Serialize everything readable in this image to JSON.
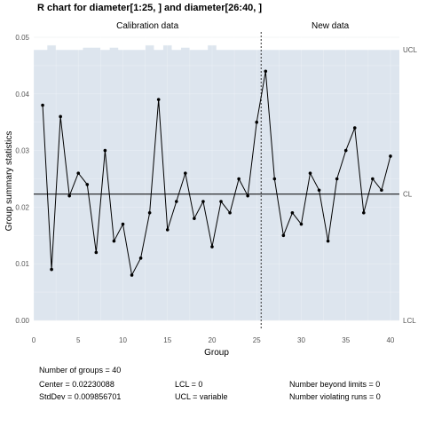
{
  "chart_data": {
    "type": "line",
    "title": "R chart for diameter[1:25, ] and diameter[26:40, ]",
    "xlabel": "Group",
    "ylabel": "Group summary statistics",
    "xlim": [
      0,
      41
    ],
    "ylim": [
      0,
      0.05
    ],
    "xticks": [
      0,
      5,
      10,
      15,
      20,
      25,
      30,
      35,
      40
    ],
    "yticks": [
      0.0,
      0.01,
      0.02,
      0.03,
      0.04,
      0.05
    ],
    "ytick_labels": [
      "0.00",
      "0.01",
      "0.02",
      "0.03",
      "0.04",
      "0.05"
    ],
    "grid": true,
    "sections": [
      "Calibration data",
      "New data"
    ],
    "split_at": 25.5,
    "center": 0.0223,
    "limit_labels": {
      "ucl": "UCL",
      "cl": "CL",
      "lcl": "LCL"
    },
    "x": [
      1,
      2,
      3,
      4,
      5,
      6,
      7,
      8,
      9,
      10,
      11,
      12,
      13,
      14,
      15,
      16,
      17,
      18,
      19,
      20,
      21,
      22,
      23,
      24,
      25,
      26,
      27,
      28,
      29,
      30,
      31,
      32,
      33,
      34,
      35,
      36,
      37,
      38,
      39,
      40
    ],
    "values": [
      0.038,
      0.009,
      0.036,
      0.022,
      0.026,
      0.024,
      0.012,
      0.03,
      0.014,
      0.017,
      0.008,
      0.011,
      0.019,
      0.039,
      0.016,
      0.021,
      0.026,
      0.018,
      0.021,
      0.013,
      0.021,
      0.019,
      0.025,
      0.022,
      0.035,
      0.044,
      0.025,
      0.015,
      0.019,
      0.017,
      0.026,
      0.023,
      0.014,
      0.025,
      0.03,
      0.034,
      0.019,
      0.025,
      0.023,
      0.029
    ],
    "ucl": [
      0.0478,
      0.0486,
      0.0478,
      0.0478,
      0.0478,
      0.0482,
      0.0482,
      0.0478,
      0.0482,
      0.0478,
      0.0478,
      0.0478,
      0.0486,
      0.0478,
      0.0486,
      0.0478,
      0.0482,
      0.0478,
      0.0478,
      0.0486,
      0.0478,
      0.0478,
      0.0478,
      0.0478,
      0.0478,
      0.0478,
      0.0478,
      0.0478,
      0.0478,
      0.0478,
      0.0478,
      0.0478,
      0.0478,
      0.0478,
      0.0478,
      0.0478,
      0.0478,
      0.0478,
      0.0478,
      0.0478
    ],
    "colors": {
      "band": "#dde5ee",
      "line": "#000000",
      "grid": "#e4e8ec"
    }
  },
  "stats": {
    "groups": "Number of groups = 40",
    "center": "Center = 0.02230088",
    "stddev": "StdDev = 0.009856701",
    "lcl": "LCL = 0",
    "ucl": "UCL = variable",
    "beyond": "Number beyond limits = 0",
    "violating": "Number violating runs = 0"
  }
}
